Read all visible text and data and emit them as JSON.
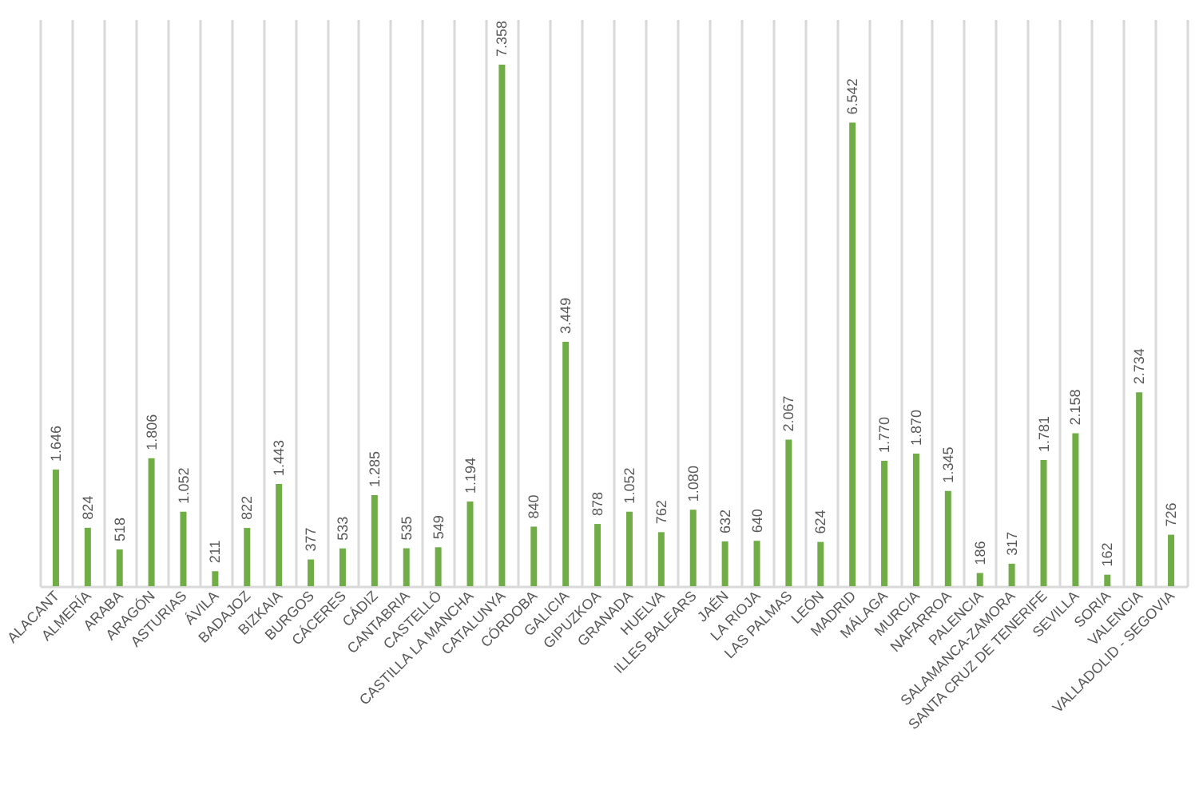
{
  "chart_data": {
    "type": "bar",
    "categories": [
      "ALACANT",
      "ALMERÍA",
      "ARABA",
      "ARAGÓN",
      "ASTURIAS",
      "ÁVILA",
      "BADAJOZ",
      "BIZKAIA",
      "BURGOS",
      "CÁCERES",
      "CÁDIZ",
      "CANTABRIA",
      "CASTELLÓ",
      "CASTILLA LA MANCHA",
      "CATALUNYA",
      "CÓRDOBA",
      "GALICIA",
      "GIPUZKOA",
      "GRANADA",
      "HUELVA",
      "ILLES BALEARS",
      "JAÉN",
      "LA RIOJA",
      "LAS PALMAS",
      "LEÓN",
      "MADRID",
      "MÁLAGA",
      "MURCIA",
      "NAFARROA",
      "PALENCIA",
      "SALAMANCA-ZAMORA",
      "SANTA CRUZ DE TENERIFE",
      "SEVILLA",
      "SORIA",
      "VALENCIA",
      "VALLADOLID - SEGOVIA"
    ],
    "values": [
      1646,
      824,
      518,
      1806,
      1052,
      211,
      822,
      1443,
      377,
      533,
      1285,
      535,
      549,
      1194,
      7358,
      840,
      3449,
      878,
      1052,
      762,
      1080,
      632,
      640,
      2067,
      624,
      6542,
      1770,
      1870,
      1345,
      186,
      317,
      1781,
      2158,
      162,
      2734,
      726
    ],
    "value_labels": [
      "1.646",
      "824",
      "518",
      "1.806",
      "1.052",
      "211",
      "822",
      "1.443",
      "377",
      "533",
      "1.285",
      "535",
      "549",
      "1.194",
      "7.358",
      "840",
      "3.449",
      "878",
      "1.052",
      "762",
      "1.080",
      "632",
      "640",
      "2.067",
      "624",
      "6.542",
      "1.770",
      "1.870",
      "1.345",
      "186",
      "317",
      "1.781",
      "2.158",
      "162",
      "2.734",
      "726"
    ],
    "color": "#70ad47",
    "grid": "x",
    "tick_labels": "x"
  }
}
